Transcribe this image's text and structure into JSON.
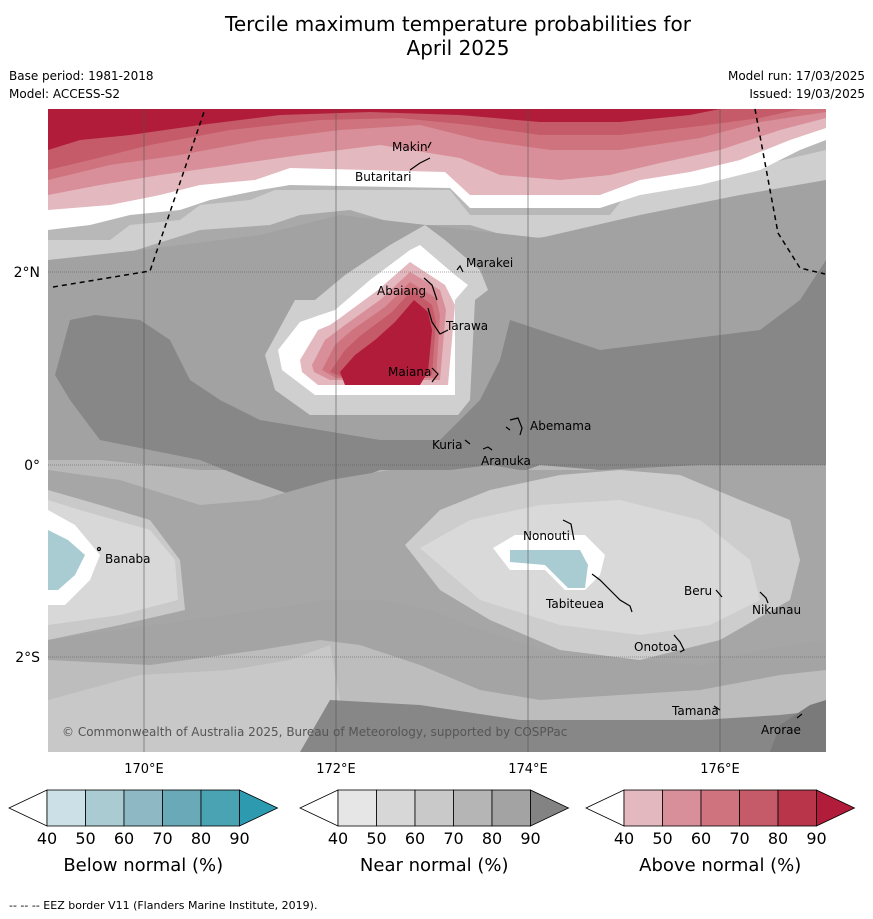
{
  "title_line1": "Tercile maximum temperature probabilities for",
  "title_line2": "April 2025",
  "base_period": "Base period: 1981-2018",
  "model": "Model: ACCESS-S2",
  "model_run": "Model run: 17/03/2025",
  "issued": "Issued: 19/03/2025",
  "lat_labels": [
    "2°N",
    "0°",
    "2°S"
  ],
  "lon_labels": [
    "170°E",
    "172°E",
    "174°E",
    "176°E"
  ],
  "places": {
    "makin": "Makin",
    "butaritari": "Butaritari",
    "marakei": "Marakei",
    "abaiang": "Abaiang",
    "tarawa": "Tarawa",
    "maiana": "Maiana",
    "abemama": "Abemama",
    "kuria": "Kuria",
    "aranuka": "Aranuka",
    "banaba": "Banaba",
    "nonouti": "Nonouti",
    "tabiteuea": "Tabiteuea",
    "beru": "Beru",
    "nikunau": "Nikunau",
    "onotoa": "Onotoa",
    "tamana": "Tamana",
    "arorae": "Arorae"
  },
  "copyright": "© Commonwealth of Australia 2025, Bureau of Meteorology, supported by COSPPac",
  "colorbars": [
    {
      "label": "Below normal (%)",
      "ticks": [
        "40",
        "50",
        "60",
        "70",
        "80",
        "90"
      ],
      "colors": [
        "#ffffff",
        "#cce1e7",
        "#abcbd2",
        "#8eb9c4",
        "#6aa9b7",
        "#4aa3b2",
        "#2e9ab0"
      ]
    },
    {
      "label": "Near normal (%)",
      "ticks": [
        "40",
        "50",
        "60",
        "70",
        "80",
        "90"
      ],
      "colors": [
        "#ffffff",
        "#e6e6e6",
        "#d7d7d7",
        "#c9c9c9",
        "#b5b5b5",
        "#a3a3a3",
        "#838383"
      ]
    },
    {
      "label": "Above normal (%)",
      "ticks": [
        "40",
        "50",
        "60",
        "70",
        "80",
        "90"
      ],
      "colors": [
        "#ffffff",
        "#e3b8bf",
        "#d88f99",
        "#cf747e",
        "#c55a68",
        "#b8354a",
        "#b01c3a"
      ]
    }
  ],
  "footnote": "--  --  -- EEZ border V11 (Flanders Marine Institute, 2019)."
}
